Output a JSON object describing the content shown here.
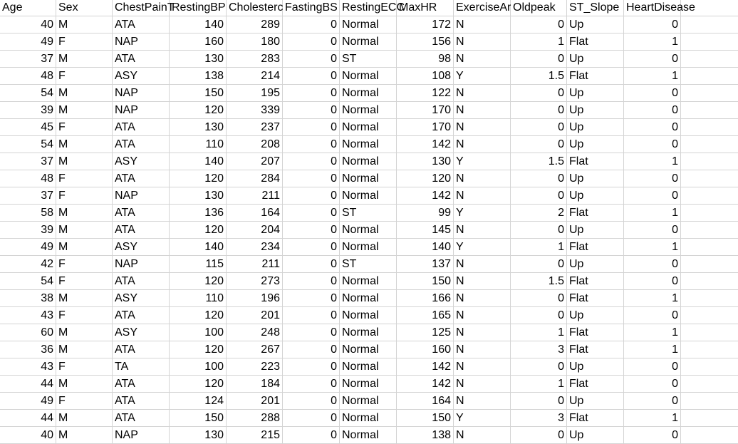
{
  "sheet": {
    "headers": [
      "Age",
      "Sex",
      "ChestPainT",
      "RestingBP",
      "Cholesterc",
      "FastingBS",
      "RestingECC",
      "MaxHR",
      "ExerciseAr",
      "Oldpeak",
      "ST_Slope",
      "HeartDisease"
    ],
    "rows": [
      [
        "40",
        "M",
        "ATA",
        "140",
        "289",
        "0",
        "Normal",
        "172",
        "N",
        "0",
        "Up",
        "0"
      ],
      [
        "49",
        "F",
        "NAP",
        "160",
        "180",
        "0",
        "Normal",
        "156",
        "N",
        "1",
        "Flat",
        "1"
      ],
      [
        "37",
        "M",
        "ATA",
        "130",
        "283",
        "0",
        "ST",
        "98",
        "N",
        "0",
        "Up",
        "0"
      ],
      [
        "48",
        "F",
        "ASY",
        "138",
        "214",
        "0",
        "Normal",
        "108",
        "Y",
        "1.5",
        "Flat",
        "1"
      ],
      [
        "54",
        "M",
        "NAP",
        "150",
        "195",
        "0",
        "Normal",
        "122",
        "N",
        "0",
        "Up",
        "0"
      ],
      [
        "39",
        "M",
        "NAP",
        "120",
        "339",
        "0",
        "Normal",
        "170",
        "N",
        "0",
        "Up",
        "0"
      ],
      [
        "45",
        "F",
        "ATA",
        "130",
        "237",
        "0",
        "Normal",
        "170",
        "N",
        "0",
        "Up",
        "0"
      ],
      [
        "54",
        "M",
        "ATA",
        "110",
        "208",
        "0",
        "Normal",
        "142",
        "N",
        "0",
        "Up",
        "0"
      ],
      [
        "37",
        "M",
        "ASY",
        "140",
        "207",
        "0",
        "Normal",
        "130",
        "Y",
        "1.5",
        "Flat",
        "1"
      ],
      [
        "48",
        "F",
        "ATA",
        "120",
        "284",
        "0",
        "Normal",
        "120",
        "N",
        "0",
        "Up",
        "0"
      ],
      [
        "37",
        "F",
        "NAP",
        "130",
        "211",
        "0",
        "Normal",
        "142",
        "N",
        "0",
        "Up",
        "0"
      ],
      [
        "58",
        "M",
        "ATA",
        "136",
        "164",
        "0",
        "ST",
        "99",
        "Y",
        "2",
        "Flat",
        "1"
      ],
      [
        "39",
        "M",
        "ATA",
        "120",
        "204",
        "0",
        "Normal",
        "145",
        "N",
        "0",
        "Up",
        "0"
      ],
      [
        "49",
        "M",
        "ASY",
        "140",
        "234",
        "0",
        "Normal",
        "140",
        "Y",
        "1",
        "Flat",
        "1"
      ],
      [
        "42",
        "F",
        "NAP",
        "115",
        "211",
        "0",
        "ST",
        "137",
        "N",
        "0",
        "Up",
        "0"
      ],
      [
        "54",
        "F",
        "ATA",
        "120",
        "273",
        "0",
        "Normal",
        "150",
        "N",
        "1.5",
        "Flat",
        "0"
      ],
      [
        "38",
        "M",
        "ASY",
        "110",
        "196",
        "0",
        "Normal",
        "166",
        "N",
        "0",
        "Flat",
        "1"
      ],
      [
        "43",
        "F",
        "ATA",
        "120",
        "201",
        "0",
        "Normal",
        "165",
        "N",
        "0",
        "Up",
        "0"
      ],
      [
        "60",
        "M",
        "ASY",
        "100",
        "248",
        "0",
        "Normal",
        "125",
        "N",
        "1",
        "Flat",
        "1"
      ],
      [
        "36",
        "M",
        "ATA",
        "120",
        "267",
        "0",
        "Normal",
        "160",
        "N",
        "3",
        "Flat",
        "1"
      ],
      [
        "43",
        "F",
        "TA",
        "100",
        "223",
        "0",
        "Normal",
        "142",
        "N",
        "0",
        "Up",
        "0"
      ],
      [
        "44",
        "M",
        "ATA",
        "120",
        "184",
        "0",
        "Normal",
        "142",
        "N",
        "1",
        "Flat",
        "0"
      ],
      [
        "49",
        "F",
        "ATA",
        "124",
        "201",
        "0",
        "Normal",
        "164",
        "N",
        "0",
        "Up",
        "0"
      ],
      [
        "44",
        "M",
        "ATA",
        "150",
        "288",
        "0",
        "Normal",
        "150",
        "Y",
        "3",
        "Flat",
        "1"
      ],
      [
        "40",
        "M",
        "NAP",
        "130",
        "215",
        "0",
        "Normal",
        "138",
        "N",
        "0",
        "Up",
        "0"
      ]
    ]
  }
}
